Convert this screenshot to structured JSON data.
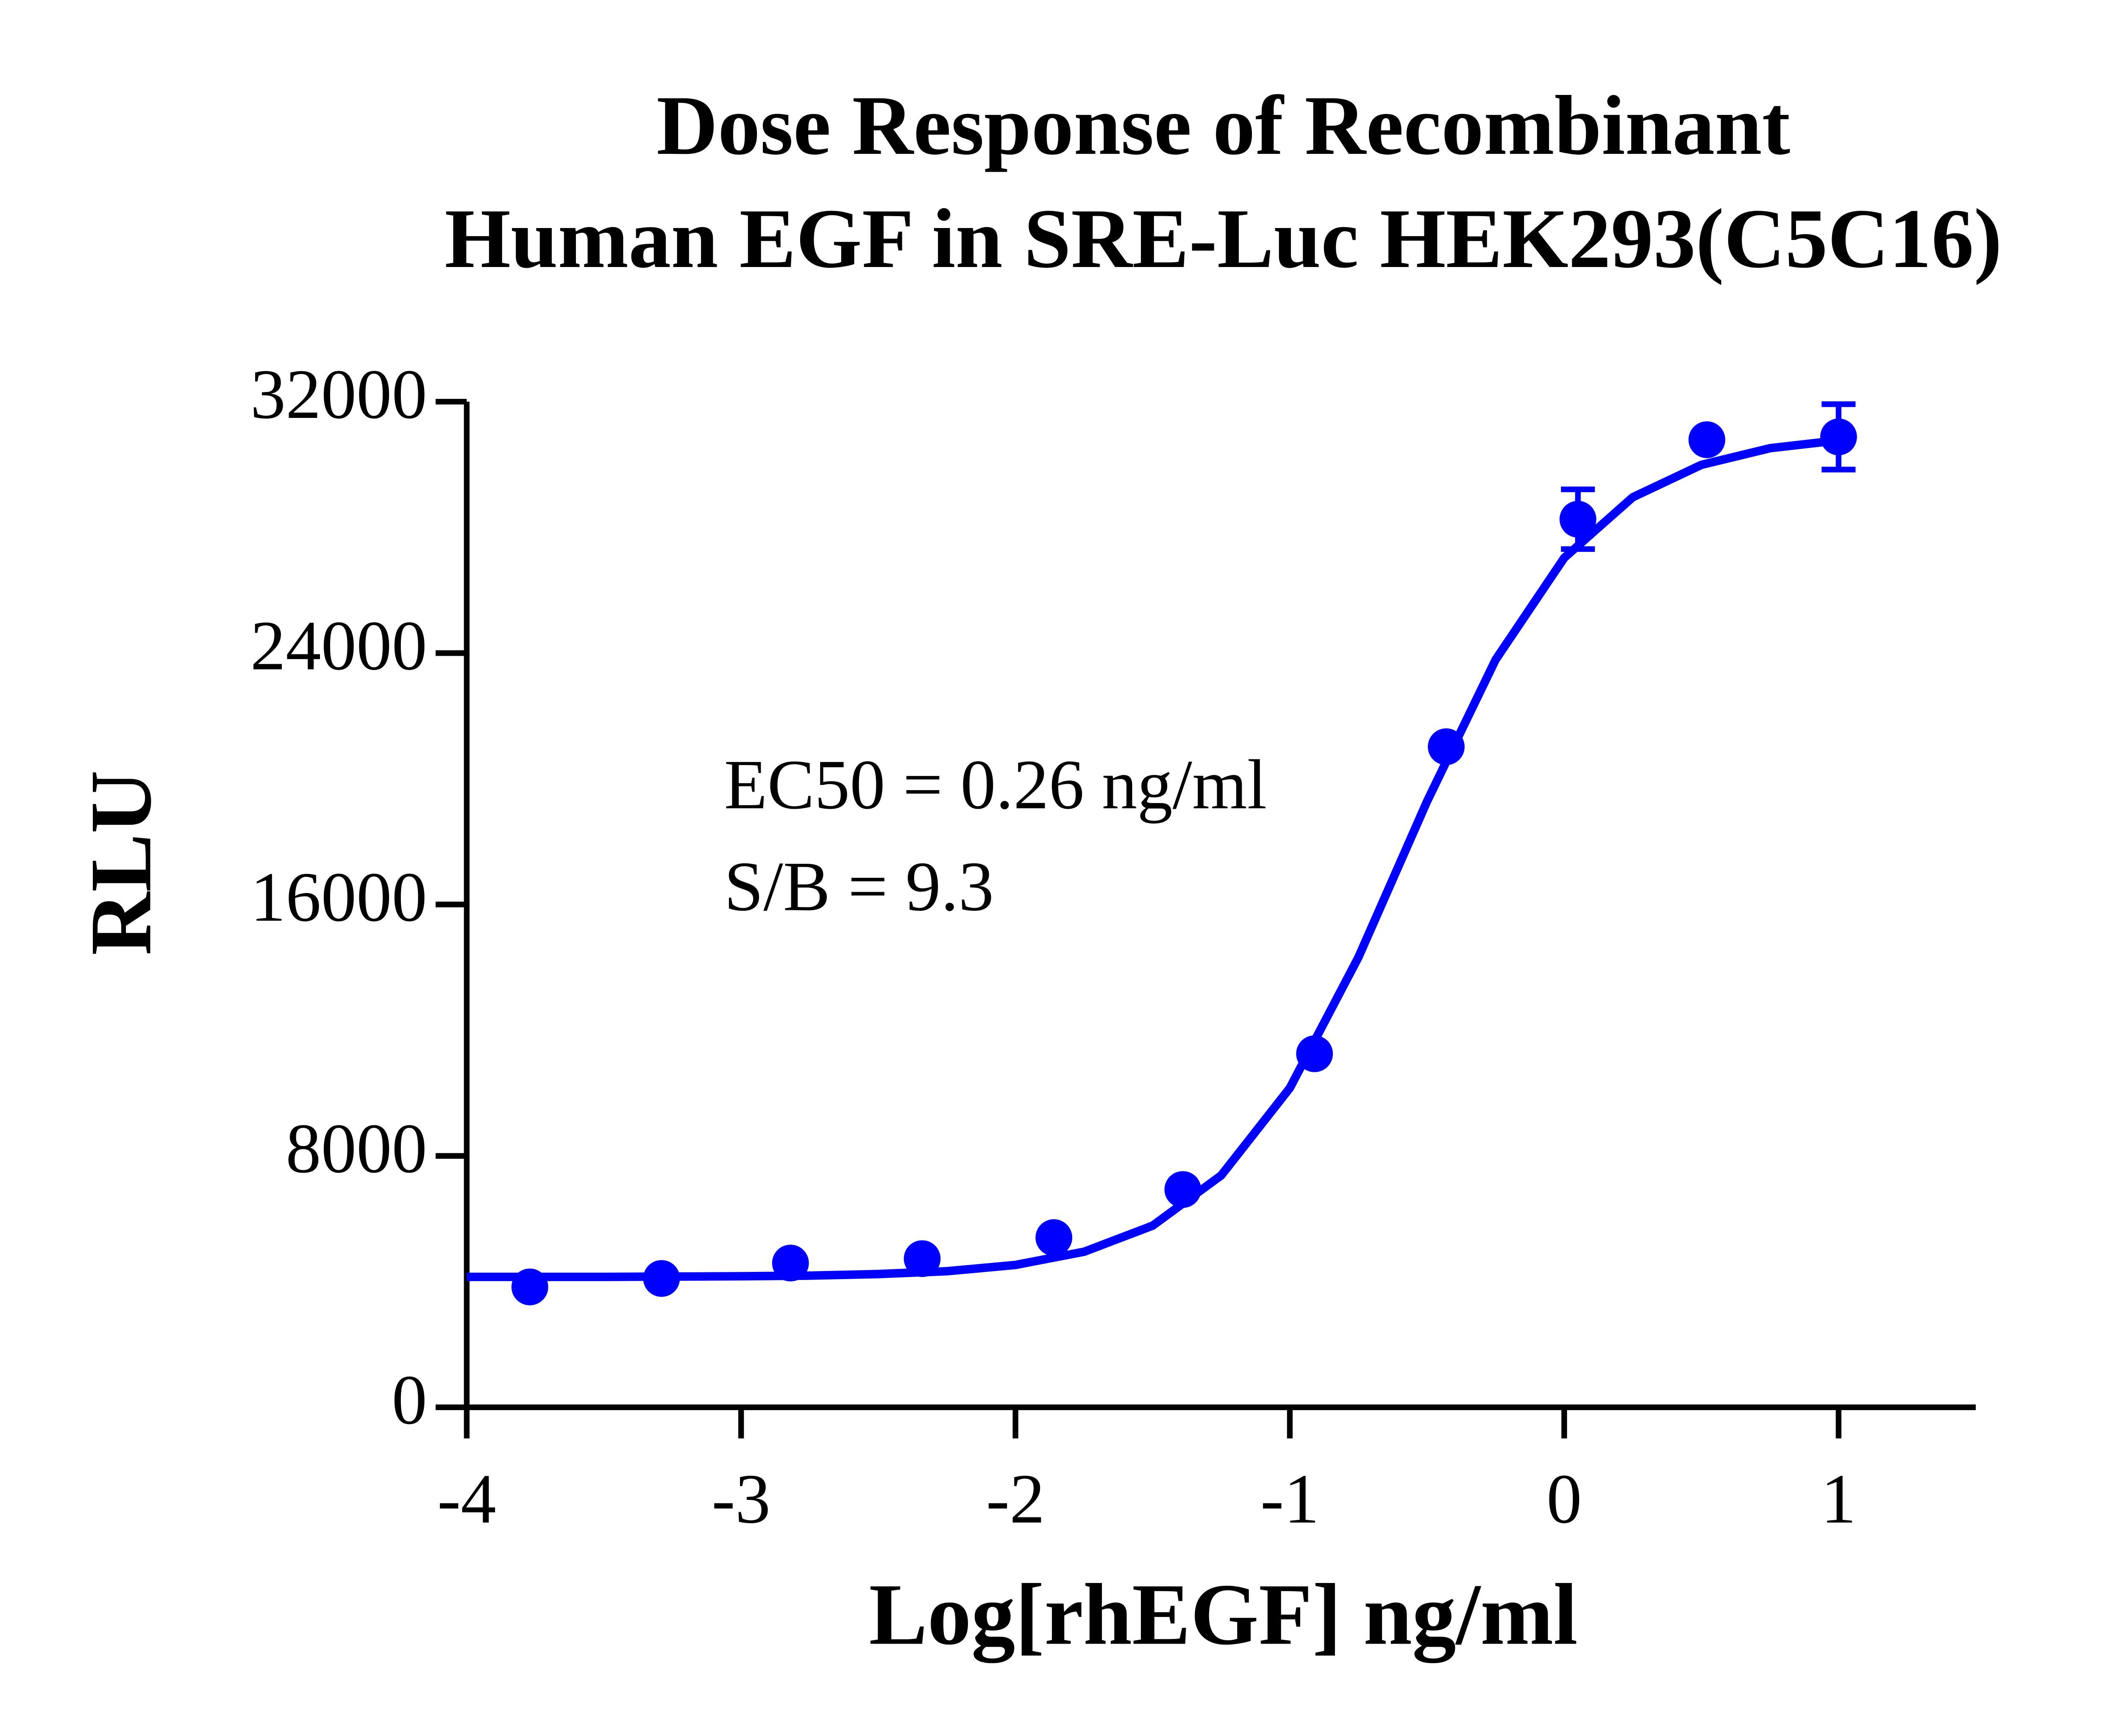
{
  "chart_data": {
    "type": "scatter",
    "title": [
      "Dose Response of Recombinant",
      "Human EGF in SRE-Luc HEK293(C5C16)"
    ],
    "x_label": "Log[rhEGF] ng/ml",
    "y_label": "RLU",
    "annotations": [
      "EC50 = 0.26 ng/ml",
      "S/B = 9.3"
    ],
    "xlim": [
      -4,
      1.5
    ],
    "xticks": [
      -4,
      -3,
      -2,
      -1,
      0,
      1
    ],
    "ylim": [
      0,
      32000
    ],
    "yticks": [
      0,
      8000,
      16000,
      24000,
      32000
    ],
    "color": "#0000ff",
    "series": [
      {
        "color": "#0000ff",
        "x": [
          -3.77,
          -3.29,
          -2.82,
          -2.34,
          -1.86,
          -1.39,
          -0.91,
          -0.43,
          0.05,
          0.52,
          1.0
        ],
        "values": [
          3830,
          4100,
          4590,
          4730,
          5400,
          6930,
          11250,
          21020,
          28260,
          30790,
          30880
        ],
        "errors": [
          null,
          null,
          null,
          null,
          null,
          null,
          null,
          null,
          950,
          null,
          1040
        ]
      }
    ],
    "curve": {
      "color": "#0000ff",
      "x": [
        -4,
        -3.75,
        -3.5,
        -3.25,
        -3,
        -2.75,
        -2.5,
        -2.25,
        -2,
        -1.75,
        -1.5,
        -1.25,
        -1,
        -0.75,
        -0.5,
        -0.25,
        0,
        0.25,
        0.5,
        0.75,
        1
      ],
      "values": [
        4150,
        4150,
        4150,
        4160,
        4170,
        4190,
        4240,
        4330,
        4530,
        4950,
        5780,
        7380,
        10160,
        14320,
        19280,
        23790,
        27030,
        28960,
        29990,
        30520,
        30770
      ]
    }
  }
}
